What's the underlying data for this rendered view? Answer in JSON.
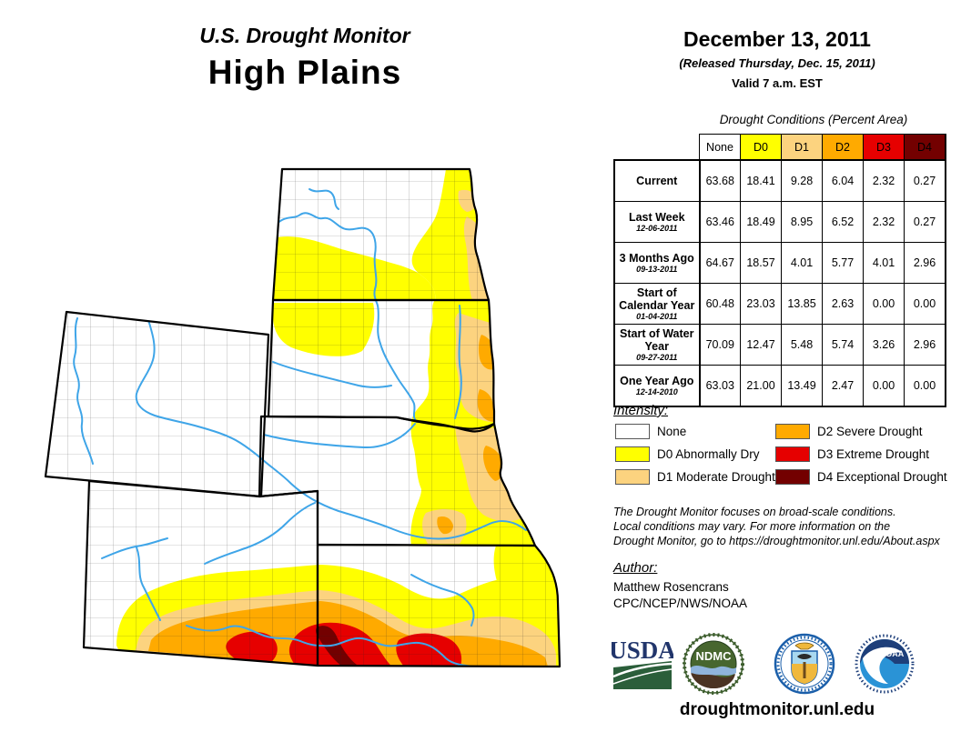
{
  "report": {
    "kicker": "U.S. Drought Monitor",
    "region": "High Plains",
    "date": "December 13, 2011",
    "released": "(Released Thursday, Dec. 15, 2011)",
    "valid": "Valid 7 a.m. EST"
  },
  "table": {
    "title": "Drought Conditions (Percent Area)",
    "columns": [
      "None",
      "D0",
      "D1",
      "D2",
      "D3",
      "D4"
    ],
    "rows": [
      {
        "label": "Current",
        "date": "",
        "values": [
          "63.68",
          "18.41",
          "9.28",
          "6.04",
          "2.32",
          "0.27"
        ]
      },
      {
        "label": "Last Week",
        "date": "12-06-2011",
        "values": [
          "63.46",
          "18.49",
          "8.95",
          "6.52",
          "2.32",
          "0.27"
        ]
      },
      {
        "label": "3 Months Ago",
        "date": "09-13-2011",
        "values": [
          "64.67",
          "18.57",
          "4.01",
          "5.77",
          "4.01",
          "2.96"
        ]
      },
      {
        "label": "Start of Calendar Year",
        "date": "01-04-2011",
        "values": [
          "60.48",
          "23.03",
          "13.85",
          "2.63",
          "0.00",
          "0.00"
        ]
      },
      {
        "label": "Start of Water Year",
        "date": "09-27-2011",
        "values": [
          "70.09",
          "12.47",
          "5.48",
          "5.74",
          "3.26",
          "2.96"
        ]
      },
      {
        "label": "One Year Ago",
        "date": "12-14-2010",
        "values": [
          "63.03",
          "21.00",
          "13.49",
          "2.47",
          "0.00",
          "0.00"
        ]
      }
    ]
  },
  "legend": {
    "title": "Intensity:",
    "items": [
      {
        "label": "None",
        "color": "#FFFFFF"
      },
      {
        "label": "D0 Abnormally Dry",
        "color": "#FFFF00"
      },
      {
        "label": "D1 Moderate Drought",
        "color": "#FCD37F"
      },
      {
        "label": "D2 Severe Drought",
        "color": "#FFAA00"
      },
      {
        "label": "D3 Extreme Drought",
        "color": "#E60000"
      },
      {
        "label": "D4 Exceptional Drought",
        "color": "#730000"
      }
    ]
  },
  "colors": {
    "none": "#FFFFFF",
    "d0": "#FFFF00",
    "d1": "#FCD37F",
    "d2": "#FFAA00",
    "d3": "#E60000",
    "d4": "#730000",
    "river": "#3FA5E8",
    "border": "#000000"
  },
  "disclaimer_lines": [
    "The Drought Monitor focuses on broad-scale conditions.",
    "Local conditions may vary. For more information on the",
    "Drought Monitor, go to https://droughtmonitor.unl.edu/About.aspx"
  ],
  "author": {
    "title": "Author:",
    "name": "Matthew Rosencrans",
    "org": "CPC/NCEP/NWS/NOAA"
  },
  "footer": {
    "url": "droughtmonitor.unl.edu",
    "logo_usda": "USDA",
    "logo_ndmc": "NDMC",
    "logo_noaa": "NOAA"
  }
}
